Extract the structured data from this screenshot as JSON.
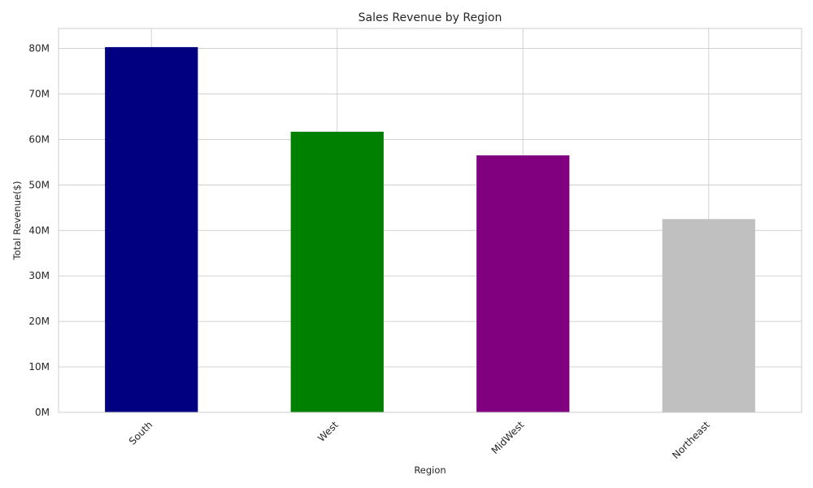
{
  "chart_data": {
    "type": "bar",
    "title": "Sales Revenue by Region",
    "xlabel": "Region",
    "ylabel": "Total Revenue($)",
    "categories": [
      "South",
      "West",
      "MidWest",
      "Northeast"
    ],
    "values": [
      80.3,
      61.7,
      56.5,
      42.5
    ],
    "value_unit": "millions of $",
    "colors": [
      "#000080",
      "#008000",
      "#800080",
      "#c0c0c0"
    ],
    "ylim": [
      0,
      84.4
    ],
    "yticks": [
      0,
      10,
      20,
      30,
      40,
      50,
      60,
      70,
      80
    ],
    "ytick_labels": [
      "0M",
      "10M",
      "20M",
      "30M",
      "40M",
      "50M",
      "60M",
      "70M",
      "80M"
    ],
    "grid": true,
    "legend": false
  }
}
